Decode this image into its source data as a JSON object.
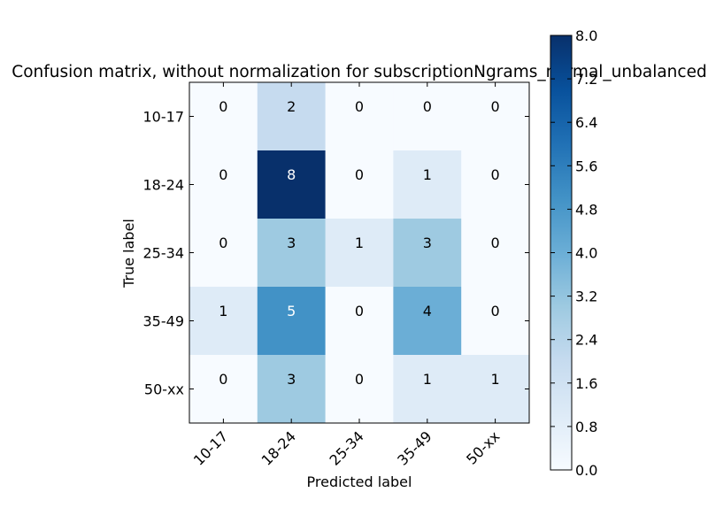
{
  "chart_data": {
    "type": "heatmap",
    "title": "Confusion matrix, without normalization for subscriptionNgrams_normal_unbalanced",
    "xlabel": "Predicted label",
    "ylabel": "True label",
    "x_categories": [
      "10-17",
      "18-24",
      "25-34",
      "35-49",
      "50-xx"
    ],
    "y_categories": [
      "10-17",
      "18-24",
      "25-34",
      "35-49",
      "50-xx"
    ],
    "matrix": [
      [
        0,
        2,
        0,
        0,
        0
      ],
      [
        0,
        8,
        0,
        1,
        0
      ],
      [
        0,
        3,
        1,
        3,
        0
      ],
      [
        1,
        5,
        0,
        4,
        0
      ],
      [
        0,
        3,
        0,
        1,
        1
      ]
    ],
    "vmin": 0,
    "vmax": 8,
    "colormap": "Blues",
    "colorbar_ticks": [
      "0.0",
      "0.8",
      "1.6",
      "2.4",
      "3.2",
      "4.0",
      "4.8",
      "5.6",
      "6.4",
      "7.2",
      "8.0"
    ]
  }
}
